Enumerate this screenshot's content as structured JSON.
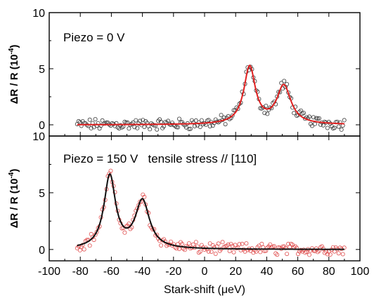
{
  "chart_data": {
    "type": "scatter",
    "x_label": "Stark-shift (μeV)",
    "y_label_prefix": "ΔR / R (10",
    "y_label_exp": "-4",
    "y_label_suffix": ")",
    "xlim": [
      -100,
      100
    ],
    "x_ticks": [
      -100,
      -80,
      -60,
      -40,
      -20,
      0,
      20,
      40,
      60,
      80,
      100
    ],
    "x_tick_labels": [
      "-100",
      "-80",
      "-60",
      "-40",
      "-20",
      "0",
      "20",
      "40",
      "60",
      "80",
      "100"
    ],
    "panels": [
      {
        "annotation": "Piezo = 0 V",
        "ylim": [
          -1,
          10
        ],
        "y_ticks": [
          0,
          5,
          10
        ],
        "y_tick_labels": [
          "0",
          "5",
          "10"
        ],
        "data_color": "#3a3a3a",
        "fit_color": "#e02020",
        "x_range": [
          -82,
          90
        ],
        "peaks": [
          {
            "center": 29,
            "amplitude": 5.1,
            "width": 4.5
          },
          {
            "center": 51,
            "amplitude": 3.4,
            "width": 5.5
          }
        ]
      },
      {
        "annotation": "Piezo = 150 V   tensile stress // [110]",
        "ylim": [
          -1,
          10
        ],
        "y_ticks": [
          0,
          5,
          10
        ],
        "y_tick_labels": [
          "0",
          "5",
          "10"
        ],
        "data_color": "#e05050",
        "fit_color": "#111111",
        "x_range": [
          -82,
          90
        ],
        "peaks": [
          {
            "center": -61,
            "amplitude": 6.4,
            "width": 4.5
          },
          {
            "center": -40,
            "amplitude": 4.2,
            "width": 5.5
          }
        ]
      }
    ]
  }
}
